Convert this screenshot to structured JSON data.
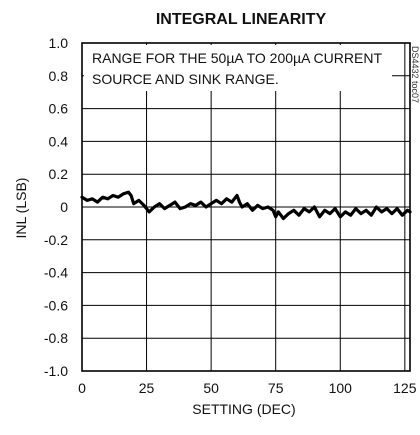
{
  "chart_data": {
    "type": "line",
    "title": "INTEGRAL LINEARITY",
    "xlabel": "SETTING (DEC)",
    "ylabel": "INL (LSB)",
    "xlim": [
      0,
      127
    ],
    "ylim": [
      -1.0,
      1.0
    ],
    "x_ticks": [
      0,
      25,
      50,
      75,
      100,
      125
    ],
    "y_ticks": [
      1.0,
      0.8,
      0.6,
      0.4,
      0.2,
      0,
      -0.2,
      -0.4,
      -0.6,
      -0.8,
      -1.0
    ],
    "x_tick_labels": [
      "0",
      "25",
      "50",
      "75",
      "100",
      "125"
    ],
    "y_tick_labels": [
      "1.0",
      "0.8",
      "0.6",
      "0.4",
      "0.2",
      "0",
      "-0.2",
      "-0.4",
      "-0.6",
      "-0.8",
      "-1.0"
    ],
    "grid": true,
    "annotation_lines": [
      "RANGE FOR THE 50µA TO 200µA CURRENT",
      "SOURCE AND SINK RANGE."
    ],
    "figure_code": "DS4432 toc07",
    "line_color": "#000000",
    "series": [
      {
        "x": [
          0,
          2,
          4,
          6,
          8,
          10,
          12,
          14,
          16,
          18,
          19,
          20,
          22,
          24,
          26,
          28,
          30,
          32,
          34,
          36,
          38,
          40,
          42,
          44,
          46,
          48,
          50,
          52,
          54,
          56,
          58,
          60,
          61,
          62,
          64,
          66,
          68,
          70,
          72,
          74,
          75,
          76,
          78,
          80,
          82,
          84,
          86,
          88,
          90,
          92,
          94,
          96,
          98,
          100,
          102,
          104,
          106,
          108,
          110,
          112,
          114,
          116,
          118,
          120,
          122,
          124,
          126,
          127
        ],
        "y": [
          0.06,
          0.04,
          0.05,
          0.03,
          0.06,
          0.05,
          0.07,
          0.06,
          0.08,
          0.09,
          0.07,
          0.02,
          0.04,
          0.01,
          -0.03,
          0.0,
          0.02,
          -0.01,
          0.01,
          0.03,
          -0.01,
          0.0,
          0.02,
          0.01,
          0.03,
          0.0,
          0.02,
          0.04,
          0.02,
          0.05,
          0.03,
          0.07,
          0.03,
          0.0,
          0.02,
          -0.02,
          0.01,
          -0.01,
          0.0,
          -0.02,
          -0.06,
          -0.03,
          -0.07,
          -0.04,
          -0.02,
          -0.05,
          -0.01,
          -0.03,
          0.0,
          -0.06,
          -0.02,
          -0.04,
          -0.01,
          -0.06,
          -0.03,
          -0.05,
          -0.01,
          -0.04,
          -0.02,
          -0.05,
          0.0,
          -0.03,
          -0.01,
          -0.04,
          -0.01,
          -0.05,
          -0.02,
          -0.03
        ]
      }
    ]
  }
}
